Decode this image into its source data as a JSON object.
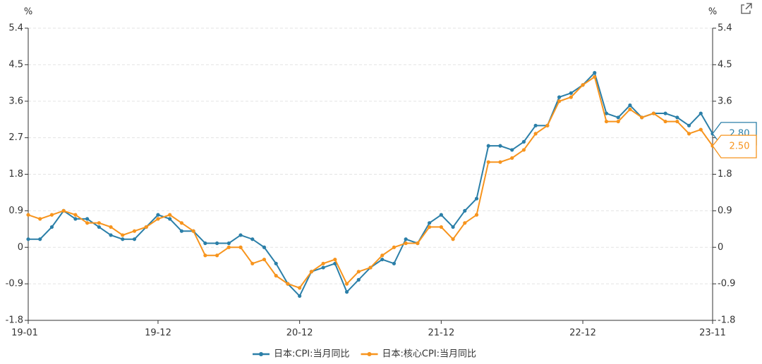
{
  "chart_data": {
    "type": "line",
    "unit_left": "%",
    "unit_right": "%",
    "categories": [
      "19-01",
      null,
      null,
      null,
      null,
      null,
      null,
      null,
      null,
      null,
      null,
      "19-12",
      null,
      null,
      null,
      null,
      null,
      null,
      null,
      null,
      null,
      null,
      null,
      "20-12",
      null,
      null,
      null,
      null,
      null,
      null,
      null,
      null,
      null,
      null,
      null,
      "21-12",
      null,
      null,
      null,
      null,
      null,
      null,
      null,
      null,
      null,
      null,
      null,
      "22-12",
      null,
      null,
      null,
      null,
      null,
      null,
      null,
      null,
      null,
      null,
      "23-11"
    ],
    "series": [
      {
        "name": "日本:CPI:当月同比",
        "color": "#2b7fa8",
        "last_value_label": "2.80",
        "values": [
          0.2,
          0.2,
          0.5,
          0.9,
          0.7,
          0.7,
          0.5,
          0.3,
          0.2,
          0.2,
          0.5,
          0.8,
          0.7,
          0.4,
          0.4,
          0.1,
          0.1,
          0.1,
          0.3,
          0.2,
          0.0,
          -0.4,
          -0.9,
          -1.2,
          -0.6,
          -0.5,
          -0.4,
          -1.1,
          -0.8,
          -0.5,
          -0.3,
          -0.4,
          0.2,
          0.1,
          0.6,
          0.8,
          0.5,
          0.9,
          1.2,
          2.5,
          2.5,
          2.4,
          2.6,
          3.0,
          3.0,
          3.7,
          3.8,
          4.0,
          4.3,
          3.3,
          3.2,
          3.5,
          3.2,
          3.3,
          3.3,
          3.2,
          3.0,
          3.3,
          2.8
        ]
      },
      {
        "name": "日本:核心CPI:当月同比",
        "color": "#f7941d",
        "last_value_label": "2.50",
        "values": [
          0.8,
          0.7,
          0.8,
          0.9,
          0.8,
          0.6,
          0.6,
          0.5,
          0.3,
          0.4,
          0.5,
          0.7,
          0.8,
          0.6,
          0.4,
          -0.2,
          -0.2,
          0.0,
          0.0,
          -0.4,
          -0.3,
          -0.7,
          -0.9,
          -1.0,
          -0.6,
          -0.4,
          -0.3,
          -0.9,
          -0.6,
          -0.5,
          -0.2,
          0.0,
          0.1,
          0.1,
          0.5,
          0.5,
          0.2,
          0.6,
          0.8,
          2.1,
          2.1,
          2.2,
          2.4,
          2.8,
          3.0,
          3.6,
          3.7,
          4.0,
          4.2,
          3.1,
          3.1,
          3.4,
          3.2,
          3.3,
          3.1,
          3.1,
          2.8,
          2.9,
          2.5
        ]
      }
    ],
    "ylim": [
      -1.8,
      5.4
    ],
    "yticks": [
      5.4,
      4.5,
      3.6,
      2.7,
      1.8,
      0.9,
      0,
      -0.9,
      -1.8
    ],
    "y2lim": [
      -1.8,
      5.4
    ],
    "y2ticks": [
      5.4,
      4.5,
      3.6,
      2.7,
      1.8,
      0.9,
      0,
      -0.9,
      -1.8
    ],
    "grid": true,
    "legend": "bottom"
  }
}
